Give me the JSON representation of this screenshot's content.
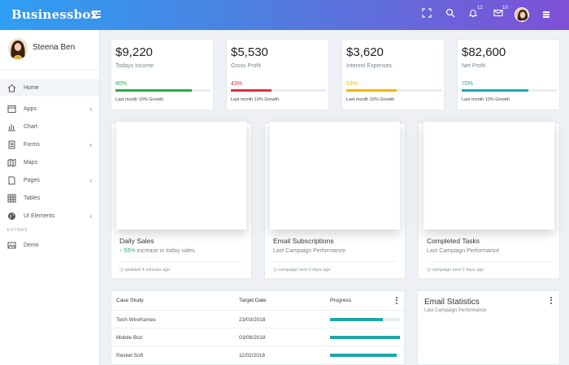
{
  "topbar": {
    "brand": "Businessbox",
    "icons": [
      "fullscreen-icon",
      "search-icon",
      "bell-icon",
      "mail-icon",
      "menu-icon"
    ],
    "bell_count": "12",
    "mail_count": "10"
  },
  "sidebar": {
    "profile_name": "Steena Ben",
    "items": [
      {
        "label": "Home",
        "icon": "home-icon",
        "active": true
      },
      {
        "label": "Apps",
        "icon": "apps-icon",
        "chevron": "‹"
      },
      {
        "label": "Chart",
        "icon": "chart-icon"
      },
      {
        "label": "Forms",
        "icon": "forms-icon",
        "chevron": "‹"
      },
      {
        "label": "Maps",
        "icon": "maps-icon"
      },
      {
        "label": "Pages",
        "icon": "pages-icon",
        "chevron": "‹"
      },
      {
        "label": "Tables",
        "icon": "tables-icon"
      },
      {
        "label": "UI Elements",
        "icon": "globe-icon",
        "chevron": "‹"
      }
    ],
    "extras_heading": "EXTRAS",
    "extras": [
      {
        "label": "Demo",
        "icon": "image-icon"
      }
    ]
  },
  "stats": [
    {
      "value": "$9,220",
      "label": "Todays Income",
      "percent": "80%",
      "progress": 0.8,
      "color": "#2eaa4a",
      "growth": "Last month 10% Growth"
    },
    {
      "value": "$5,530",
      "label": "Gross Profit",
      "percent": "43%",
      "progress": 0.43,
      "color": "#e0313f",
      "growth": "Last month 10% Growth"
    },
    {
      "value": "$3,620",
      "label": "Interest Expenses",
      "percent": "53%",
      "progress": 0.53,
      "color": "#f5b700",
      "growth": "Last month 10% Growth"
    },
    {
      "value": "$82,600",
      "label": "Net Profit",
      "percent": "70%",
      "progress": 0.7,
      "color": "#1ea7b3",
      "growth": "Last month 10% Growth"
    }
  ],
  "cards": [
    {
      "title": "Daily Sales",
      "sub_highlight": "↑ 55%",
      "sub_rest": " increase in today sales.",
      "footer": "updated 4 minutes ago"
    },
    {
      "title": "Email Subscriptions",
      "sub_highlight": "",
      "sub_rest": "Last Campaign Performance",
      "footer": "campaign sent 2 days ago"
    },
    {
      "title": "Completed Tasks",
      "sub_highlight": "",
      "sub_rest": "Last Campaign Performance",
      "footer": "campaign sent 2 days ago"
    }
  ],
  "table": {
    "headers": [
      "Case Study",
      "Target Date",
      "Progress"
    ],
    "rows": [
      {
        "case": "Tech Wireframes",
        "date": "23/03/2018",
        "progress": 0.75
      },
      {
        "case": "Mobile Boz",
        "date": "03/06/2018",
        "progress": 1.0
      },
      {
        "case": "Reskel Soft",
        "date": "11/02/2018",
        "progress": 0.95
      }
    ]
  },
  "email_stats": {
    "title": "Email Statistics",
    "subtitle": "Last Campaign Performance"
  }
}
